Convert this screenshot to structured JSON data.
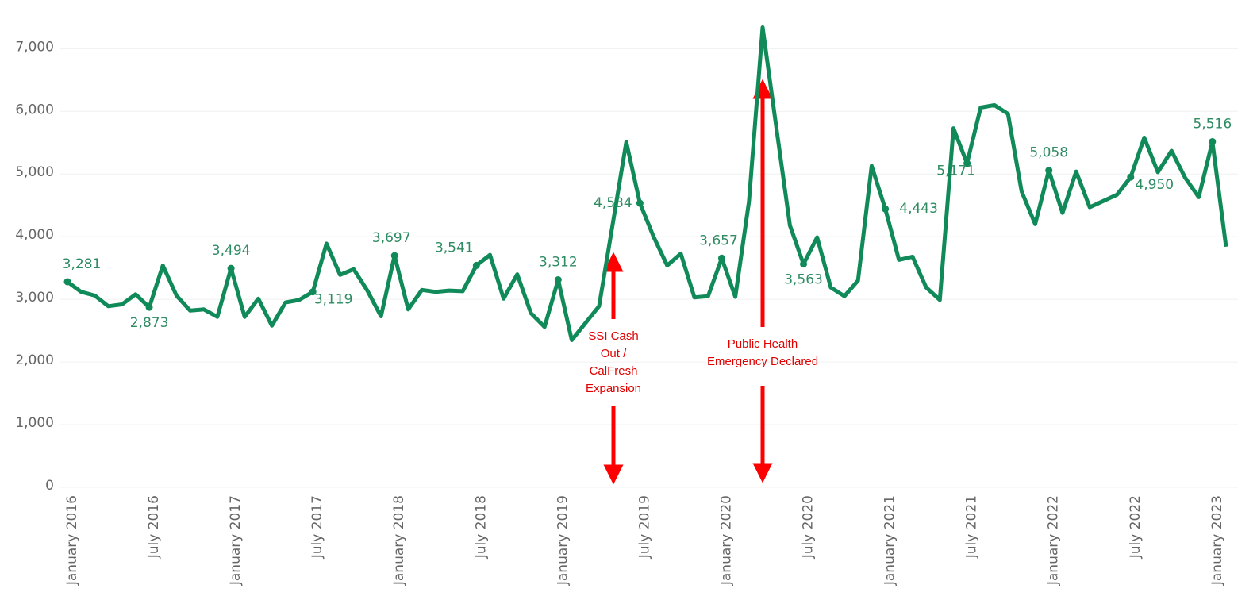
{
  "chart_data": {
    "type": "line",
    "categories": [
      "January 2016",
      null,
      null,
      null,
      null,
      null,
      "July 2016",
      null,
      null,
      null,
      null,
      null,
      "January 2017",
      null,
      null,
      null,
      null,
      null,
      "July 2017",
      null,
      null,
      null,
      null,
      null,
      "January 2018",
      null,
      null,
      null,
      null,
      null,
      "July 2018",
      null,
      null,
      null,
      null,
      null,
      "January 2019",
      null,
      null,
      null,
      null,
      null,
      "July 2019",
      null,
      null,
      null,
      null,
      null,
      "January 2020",
      null,
      null,
      null,
      null,
      null,
      "July 2020",
      null,
      null,
      null,
      null,
      null,
      "January 2021",
      null,
      null,
      null,
      null,
      null,
      "July 2021",
      null,
      null,
      null,
      null,
      null,
      "January 2022",
      null,
      null,
      null,
      null,
      null,
      "July 2022",
      null,
      null,
      null,
      null,
      null,
      "January 2023",
      null
    ],
    "series": [
      {
        "color": "#108a58",
        "values": [
          3281,
          3120,
          3060,
          2890,
          2920,
          3080,
          2873,
          3540,
          3060,
          2820,
          2840,
          2720,
          3494,
          2720,
          3010,
          2580,
          2950,
          2990,
          3119,
          3890,
          3390,
          3480,
          3140,
          2730,
          3697,
          2840,
          3150,
          3120,
          3140,
          3130,
          3541,
          3710,
          3010,
          3400,
          2780,
          2560,
          3312,
          2350,
          2620,
          2890,
          4200,
          5510,
          4534,
          4000,
          3540,
          3730,
          3030,
          3050,
          3657,
          3040,
          4560,
          7340,
          5750,
          4180,
          3563,
          3990,
          3190,
          3050,
          3300,
          5130,
          4443,
          3630,
          3680,
          3190,
          2990,
          5730,
          5171,
          6060,
          6100,
          5960,
          4720,
          4200,
          5058,
          4380,
          5040,
          4470,
          4570,
          4670,
          4950,
          5580,
          5030,
          5370,
          4940,
          4630,
          5516,
          3840
        ],
        "value_labels": [
          "3,281",
          null,
          null,
          null,
          null,
          null,
          "2,873",
          null,
          null,
          null,
          null,
          null,
          "3,494",
          null,
          null,
          null,
          null,
          null,
          "3,119",
          null,
          null,
          null,
          null,
          null,
          "3,697",
          null,
          null,
          null,
          null,
          null,
          "3,541",
          null,
          null,
          null,
          null,
          null,
          "3,312",
          null,
          null,
          null,
          null,
          null,
          "4,534",
          null,
          null,
          null,
          null,
          null,
          "3,657",
          null,
          null,
          null,
          null,
          null,
          "3,563",
          null,
          null,
          null,
          null,
          null,
          "4,443",
          null,
          null,
          null,
          null,
          null,
          "5,171",
          null,
          null,
          null,
          null,
          null,
          "5,058",
          null,
          null,
          null,
          null,
          null,
          "4,950",
          null,
          null,
          null,
          null,
          null,
          "5,516",
          null
        ]
      }
    ],
    "ylim": [
      0,
      7650
    ],
    "yticks": [
      {
        "value": 0,
        "label": "0"
      },
      {
        "value": 1000,
        "label": "1,000"
      },
      {
        "value": 2000,
        "label": "2,000"
      },
      {
        "value": 3000,
        "label": "3,000"
      },
      {
        "value": 4000,
        "label": "4,000"
      },
      {
        "value": 5000,
        "label": "5,000"
      },
      {
        "value": 6000,
        "label": "6,000"
      },
      {
        "value": 7000,
        "label": "7,000"
      }
    ],
    "grid": true,
    "annotations": [
      {
        "lines": [
          "SSI Cash",
          "Out /",
          "CalFresh",
          "Expansion"
        ]
      },
      {
        "lines": [
          "Public Health",
          "Emergency Declared"
        ]
      }
    ]
  }
}
